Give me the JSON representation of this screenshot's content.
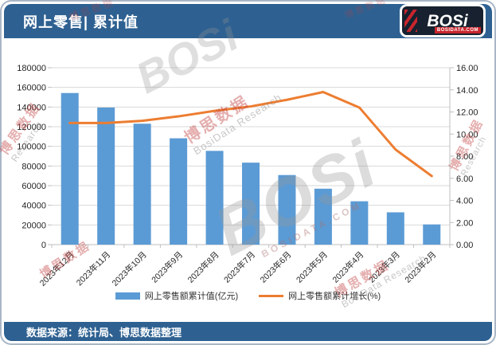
{
  "header": {
    "title": "网上零售| 累计值"
  },
  "logo": {
    "text": "BOSi",
    "domain": "BOSIDATA.COM"
  },
  "footer": {
    "source": "数据来源：统计局、博思数据整理"
  },
  "watermarks": {
    "brand": "BOSi",
    "brand_domain": "BOSIDATA.COM",
    "cn": "博思数据",
    "en": "BosiData Research",
    "en_short": "Research"
  },
  "chart_data": {
    "type": "bar",
    "subtype": "bar-line-combo",
    "title": "网上零售| 累计值",
    "categories": [
      "2023年12月",
      "2023年11月",
      "2023年10月",
      "2023年9月",
      "2023年8月",
      "2023年7月",
      "2023年6月",
      "2023年5月",
      "2023年4月",
      "2023年3月",
      "2023年2月"
    ],
    "series": [
      {
        "name": "网上零售额累计值(亿元)",
        "type": "bar",
        "axis": "left",
        "color": "#5B9BD5",
        "values": [
          154264,
          139479,
          123022,
          108198,
          95387,
          83402,
          70798,
          56906,
          44108,
          32863,
          20544
        ]
      },
      {
        "name": "网上零售额累计增长(%)",
        "type": "line",
        "axis": "right",
        "color": "#ED7D31",
        "values": [
          11.0,
          11.0,
          11.2,
          11.6,
          12.1,
          12.5,
          13.1,
          13.8,
          12.4,
          8.6,
          6.2
        ]
      }
    ],
    "left_axis": {
      "min": 0,
      "max": 180000,
      "step": 20000
    },
    "right_axis": {
      "min": 0,
      "max": 16,
      "step": 2,
      "decimals": 2
    },
    "grid": true,
    "legend_position": "bottom"
  },
  "colors": {
    "band": "#2E6191",
    "bar": "#5B9BD5",
    "line": "#ED7D31",
    "grid": "#D9D9D9",
    "axis": "#BFBFBF",
    "text": "#262626"
  }
}
